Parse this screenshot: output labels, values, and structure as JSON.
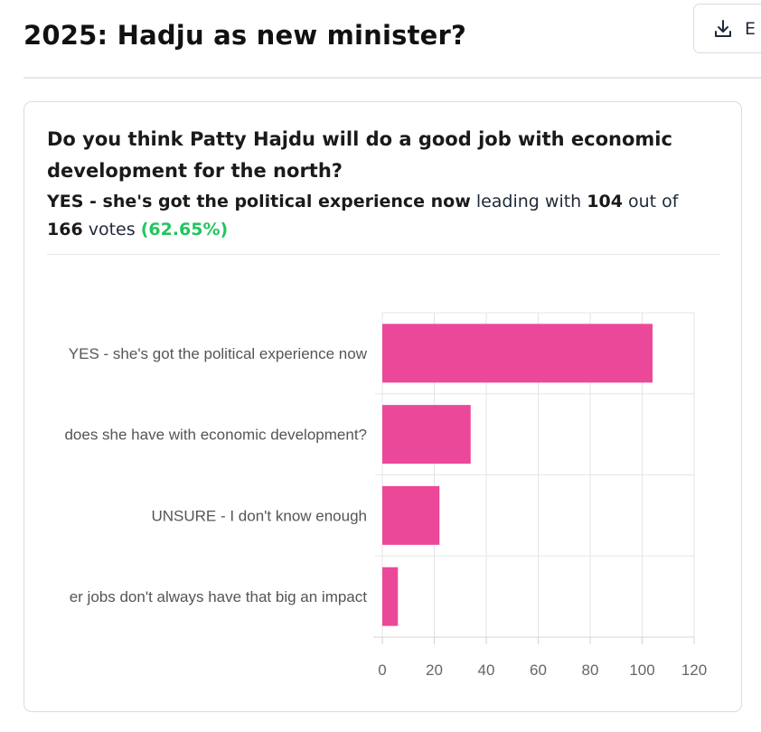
{
  "page": {
    "title": "2025: Hadju as new minister?",
    "export_label": "E",
    "export_icon": "download-icon"
  },
  "poll": {
    "question": "Do you think Patty Hajdu will do a good job with economic development for the north?",
    "leader": "YES - she's got the political experience now",
    "leading_text": "leading with",
    "leader_votes": "104",
    "out_of_text": "out of",
    "total_votes": "166",
    "votes_text": "votes",
    "percent": "(62.65%)"
  },
  "chart_data": {
    "type": "bar",
    "orientation": "horizontal",
    "categories": [
      "YES - she's got the political experience now",
      "does she have with economic development?",
      "UNSURE - I don't know enough",
      "er jobs don't always have that big an impact"
    ],
    "values": [
      104,
      34,
      22,
      6
    ],
    "xlim": [
      0,
      120
    ],
    "xticks": [
      "0",
      "20",
      "40",
      "60",
      "80",
      "100",
      "120"
    ],
    "grid": true,
    "bar_color": "#ec4899"
  }
}
